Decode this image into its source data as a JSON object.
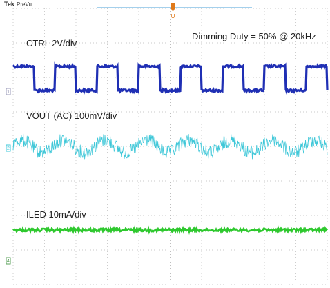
{
  "header": {
    "brand": "Tek",
    "mode": "PreVu"
  },
  "trigger": {
    "marker_label": "U"
  },
  "colors": {
    "background": "#ffffff",
    "grid": "#b8b8b8",
    "ctrl": "#1f2fb4",
    "vout": "#3ec7d8",
    "iled": "#2ec82e",
    "trigger": "#4aa0d8",
    "trigger_marker": "#e07a1a",
    "ground_marker": "#5aa05a"
  },
  "channels": [
    {
      "id": "ctrl",
      "marker_label": "1",
      "label": "CTRL 2V/div",
      "color": "#1f2fb4"
    },
    {
      "id": "vout",
      "marker_label": "2",
      "label": "VOUT (AC) 100mV/div",
      "color": "#3ec7d8"
    },
    {
      "id": "iled",
      "marker_label": "4",
      "label": "ILED 10mA/div",
      "color": "#2ec82e"
    }
  ],
  "annotation": {
    "text": "Dimming Duty = 50% @ 20kHz"
  },
  "waveforms": {
    "ctrl": {
      "shape": "square",
      "duty": 0.5,
      "cycles": 7.5
    },
    "vout": {
      "shape": "sine-ripple",
      "cycles": 7.5
    },
    "iled": {
      "shape": "flat-noise"
    }
  }
}
